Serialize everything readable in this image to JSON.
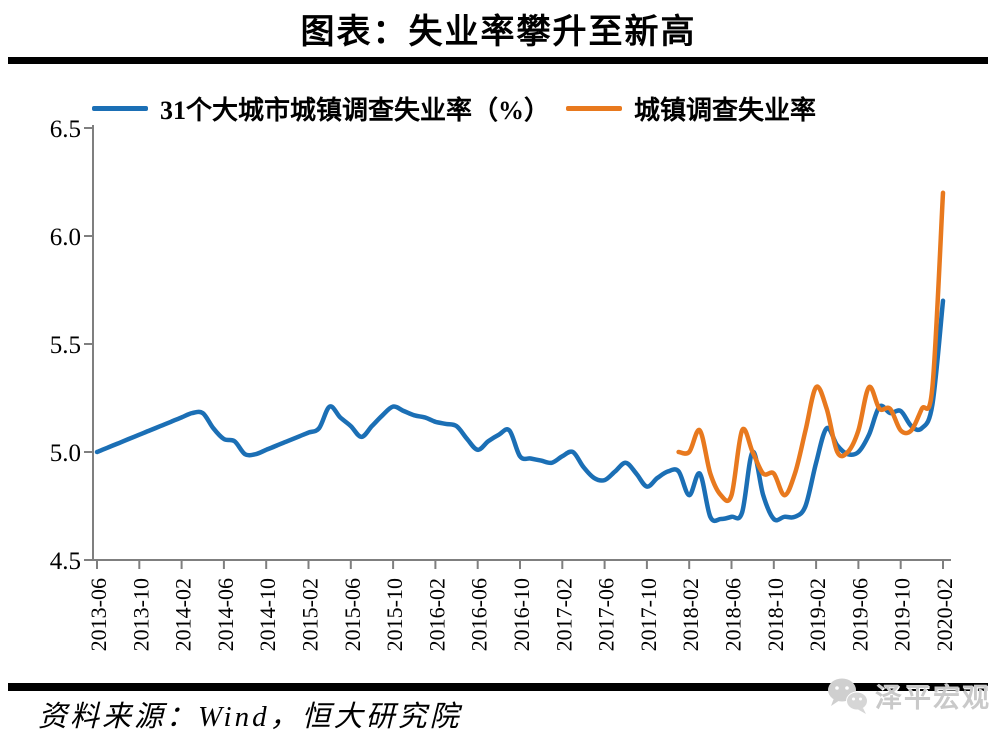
{
  "title": "图表：失业率攀升至新高",
  "source": "资料来源：Wind，恒大研究院",
  "watermark": "泽平宏观",
  "colors": {
    "series_blue": "#1b6fb5",
    "series_orange": "#e8791e",
    "axis_gray": "#7f7f7f",
    "bar_black": "#000000",
    "watermark_gray": "#c9c9c9"
  },
  "chart_data": {
    "type": "line",
    "title": "图表：失业率攀升至新高",
    "frequency": "monthly",
    "x_start": "2013-06",
    "x_end": "2020-02",
    "x_tick_labels": [
      "2013-06",
      "2013-10",
      "2014-02",
      "2014-06",
      "2014-10",
      "2015-02",
      "2015-06",
      "2015-10",
      "2016-02",
      "2016-06",
      "2016-10",
      "2017-02",
      "2017-06",
      "2017-10",
      "2018-02",
      "2018-06",
      "2018-10",
      "2019-02",
      "2019-06",
      "2019-10",
      "2020-02"
    ],
    "x_tick_every_months": 4,
    "y_axis": {
      "min": 4.5,
      "max": 6.5,
      "step": 0.5,
      "tick_labels": [
        "4.5",
        "5.0",
        "5.5",
        "6.0",
        "6.5"
      ]
    },
    "grid": false,
    "legend_position": "top",
    "series": [
      {
        "name": "31个大城市城镇调查失业率（%）",
        "color": "#1b6fb5",
        "values": [
          5.0,
          5.02,
          5.04,
          5.06,
          5.08,
          5.1,
          5.12,
          5.14,
          5.16,
          5.18,
          5.18,
          5.11,
          5.06,
          5.05,
          4.99,
          4.99,
          5.01,
          5.03,
          5.05,
          5.07,
          5.09,
          5.11,
          5.21,
          5.16,
          5.12,
          5.07,
          5.12,
          5.17,
          5.21,
          5.19,
          5.17,
          5.16,
          5.14,
          5.13,
          5.12,
          5.06,
          5.01,
          5.05,
          5.08,
          5.1,
          4.98,
          4.97,
          4.96,
          4.95,
          4.98,
          5.0,
          4.93,
          4.88,
          4.87,
          4.91,
          4.95,
          4.9,
          4.84,
          4.88,
          4.91,
          4.91,
          4.8,
          4.9,
          4.7,
          4.69,
          4.7,
          4.72,
          5.0,
          4.8,
          4.69,
          4.7,
          4.7,
          4.75,
          4.95,
          5.11,
          5.03,
          4.99,
          5.0,
          5.08,
          5.21,
          5.18,
          5.19,
          5.12,
          5.11,
          5.22,
          5.7
        ]
      },
      {
        "name": "城镇调查失业率",
        "color": "#e8791e",
        "values": [
          null,
          null,
          null,
          null,
          null,
          null,
          null,
          null,
          null,
          null,
          null,
          null,
          null,
          null,
          null,
          null,
          null,
          null,
          null,
          null,
          null,
          null,
          null,
          null,
          null,
          null,
          null,
          null,
          null,
          null,
          null,
          null,
          null,
          null,
          null,
          null,
          null,
          null,
          null,
          null,
          null,
          null,
          null,
          null,
          null,
          null,
          null,
          null,
          null,
          null,
          null,
          null,
          null,
          null,
          null,
          5.0,
          5.0,
          5.1,
          4.9,
          4.8,
          4.8,
          5.1,
          5.0,
          4.9,
          4.9,
          4.8,
          4.9,
          5.1,
          5.3,
          5.2,
          5.0,
          5.0,
          5.1,
          5.3,
          5.2,
          5.2,
          5.1,
          5.1,
          5.2,
          5.3,
          6.2
        ]
      }
    ]
  }
}
